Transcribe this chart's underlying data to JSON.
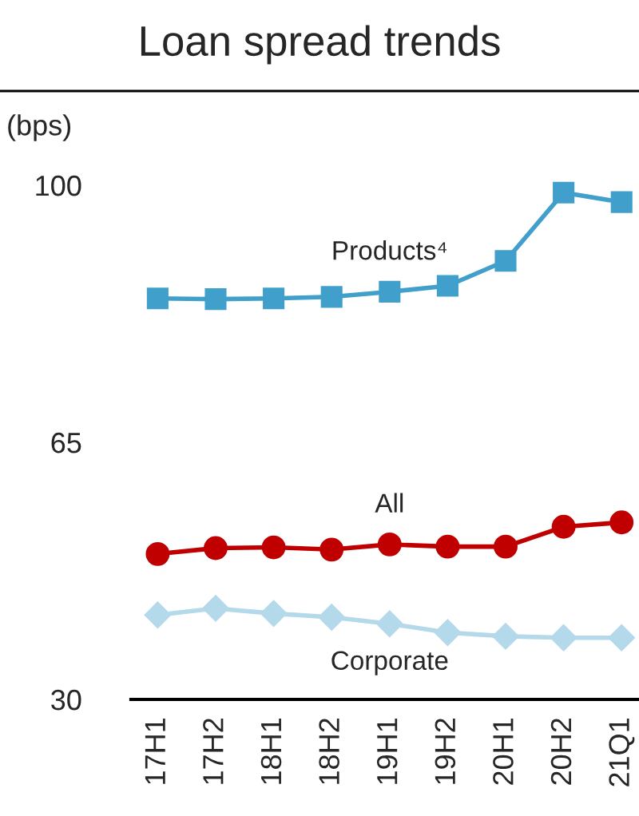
{
  "chart_data": {
    "type": "line",
    "title": "Loan spread trends",
    "ylabel": "(bps)",
    "categories": [
      "17H1",
      "17H2",
      "18H1",
      "18H2",
      "19H1",
      "19H2",
      "20H1",
      "20H2",
      "21Q1"
    ],
    "series": [
      {
        "name": "Products⁴",
        "color": "#419fcb",
        "marker": "square",
        "values": [
          84.6,
          84.5,
          84.6,
          84.8,
          85.5,
          86.3,
          89.7,
          99.0,
          97.7
        ]
      },
      {
        "name": "All",
        "color": "#c00000",
        "marker": "circle",
        "values": [
          49.8,
          50.6,
          50.7,
          50.4,
          51.1,
          50.8,
          50.8,
          53.5,
          54.1
        ]
      },
      {
        "name": "Corporate",
        "color": "#b3d9ea",
        "marker": "diamond",
        "values": [
          41.5,
          42.4,
          41.7,
          41.2,
          40.3,
          39.1,
          38.6,
          38.4,
          38.4
        ]
      }
    ],
    "ylim": [
      30,
      100
    ],
    "yticks": [
      30,
      65,
      100
    ],
    "grid": false,
    "legend": false
  }
}
